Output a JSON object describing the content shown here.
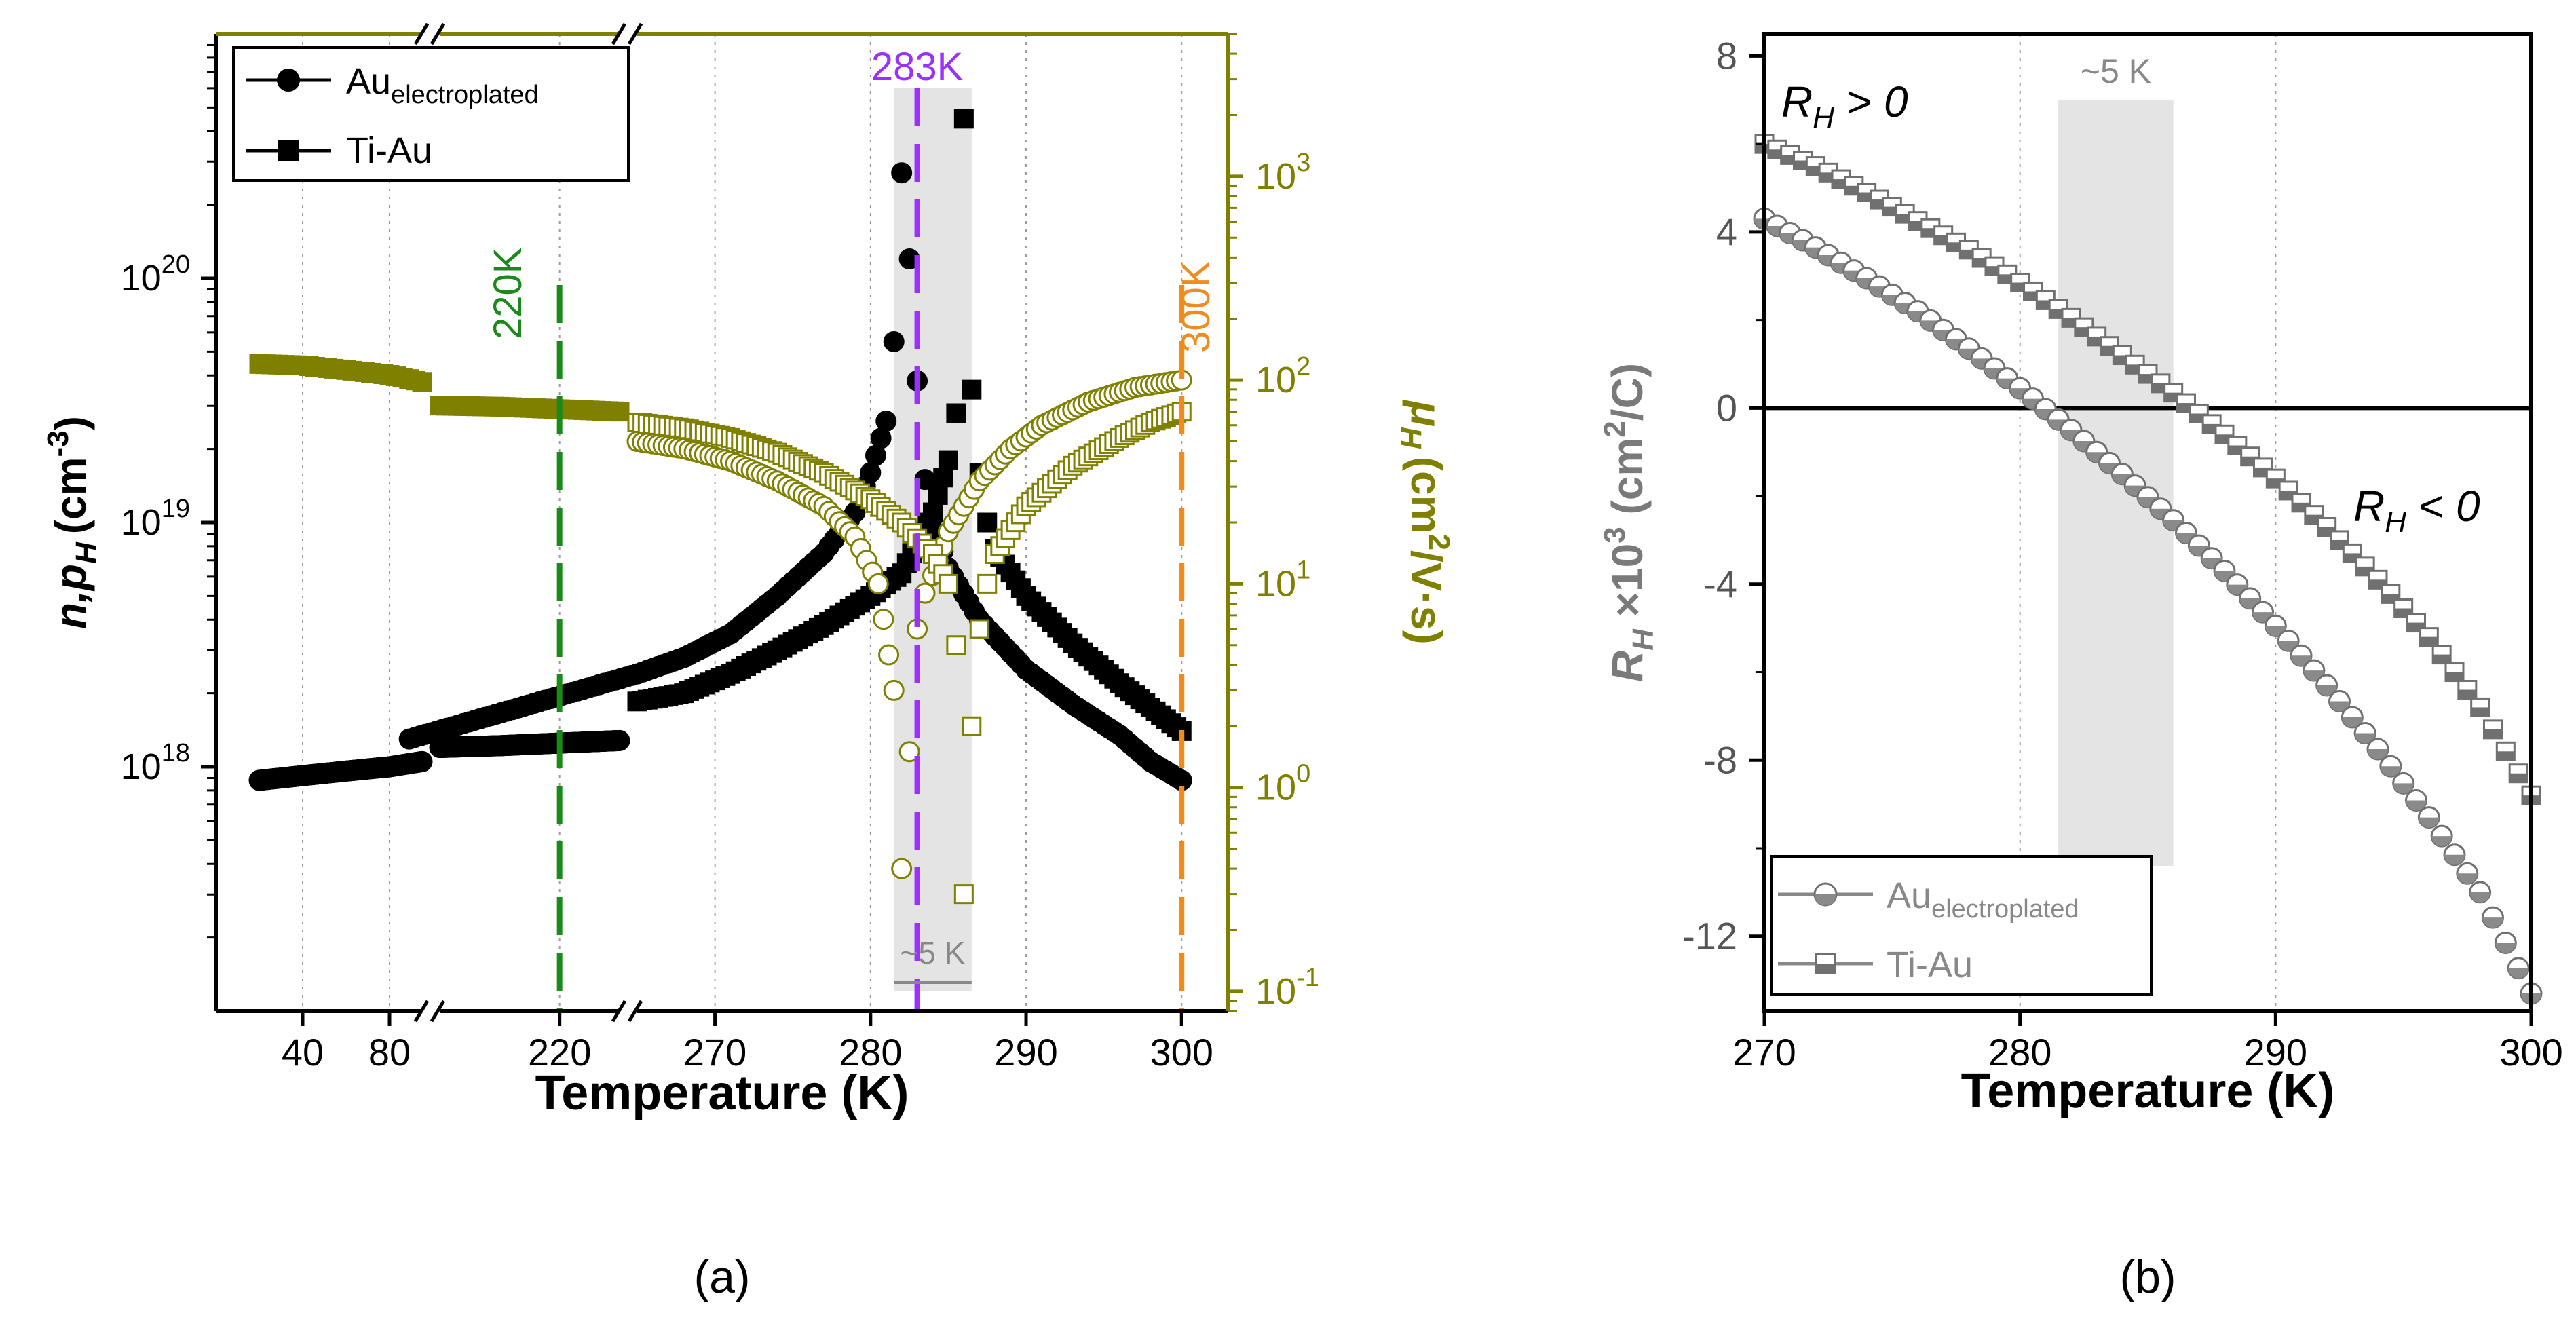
{
  "panel_labels": {
    "a": "(a)",
    "b": "(b)"
  },
  "chart_data": [
    {
      "panel": "(a)",
      "type": "scatter",
      "xlabel": "Temperature (K)",
      "ylabel_left": "n,p",
      "ylabel_left_sub": "H",
      "ylabel_left_unit": "(cm",
      "ylabel_left_exp": "-3",
      "ylabel_left_close": ")",
      "ylabel_right": "μ",
      "ylabel_right_sub": "H",
      "ylabel_right_unit": "(cm",
      "ylabel_right_exp": "2",
      "ylabel_right_rest": "/V·s)",
      "right_axis_color": "#808000",
      "x_ticks": [
        "40",
        "80",
        "220",
        "270",
        "280",
        "290",
        "300"
      ],
      "y_left_log_range": [
        1e+17,
        1e+21
      ],
      "y_left_ticks": [
        {
          "base": "10",
          "exp": "18",
          "value": 1e+18
        },
        {
          "base": "10",
          "exp": "19",
          "value": 1e+19
        },
        {
          "base": "10",
          "exp": "20",
          "value": 1e+20
        }
      ],
      "y_right_log_range": [
        0.08,
        5000
      ],
      "y_right_ticks": [
        {
          "base": "10",
          "exp": "-1",
          "value": 0.1
        },
        {
          "base": "10",
          "exp": "0",
          "value": 1
        },
        {
          "base": "10",
          "exp": "1",
          "value": 10
        },
        {
          "base": "10",
          "exp": "2",
          "value": 100
        },
        {
          "base": "10",
          "exp": "3",
          "value": 1000
        }
      ],
      "legend": [
        {
          "name": "Au",
          "sub": "electroplated",
          "marker": "circle"
        },
        {
          "name": "Ti-Au",
          "marker": "square"
        }
      ],
      "annotations": [
        {
          "text": "220K",
          "x": 220,
          "color": "#1a8a1a"
        },
        {
          "text": "283K",
          "x": 283,
          "color": "#9b30ff"
        },
        {
          "text": "300K",
          "x": 300,
          "color": "#f08c1e"
        },
        {
          "text": "~5 K",
          "x_range": [
            281.5,
            286.5
          ],
          "color": "#888888"
        }
      ],
      "shaded_region_x": [
        281.5,
        286.5
      ],
      "series": [
        {
          "name": "Au (n,p)",
          "axis": "left",
          "filled": true,
          "marker": "circle",
          "x": [
            20,
            40,
            60,
            80,
            95,
            160,
            190,
            220,
            250,
            265,
            268,
            271,
            274,
            277,
            279,
            280,
            281,
            281.5,
            282,
            282.5,
            283,
            283.5,
            284,
            285,
            287,
            290,
            293,
            296,
            298,
            300
          ],
          "y": [
            8.8e+17,
            9.2e+17,
            9.6e+17,
            1e+18,
            1.05e+18,
            1.2e+18,
            1.22e+18,
            1.25e+18,
            1.28e+18,
            2.4e+18,
            2.8e+18,
            3.5e+18,
            5e+18,
            7.5e+18,
            1.1e+19,
            1.6e+19,
            2.6e+19,
            5.5e+19,
            2.7e+20,
            1.2e+20,
            3.8e+19,
            1.5e+19,
            1.05e+19,
            6.5e+18,
            4e+18,
            2.5e+18,
            1.8e+18,
            1.35e+18,
            1.05e+18,
            8.8e+17
          ]
        },
        {
          "name": "Ti-Au (n,p)",
          "axis": "left",
          "filled": true,
          "marker": "square",
          "x": [
            265,
            268,
            271,
            274,
            277,
            280,
            282,
            284,
            285,
            285.5,
            286,
            286.5,
            287,
            287.5,
            288,
            290,
            293,
            296,
            298,
            300
          ],
          "y": [
            1.85e+18,
            2e+18,
            2.4e+18,
            3e+18,
            3.8e+18,
            5e+18,
            6.2e+18,
            1.1e+19,
            1.8e+19,
            2.8e+19,
            4.5e+20,
            3.5e+19,
            1.6e+19,
            1e+19,
            7.8e+18,
            5e+18,
            3.2e+18,
            2.2e+18,
            1.75e+18,
            1.4e+18
          ]
        },
        {
          "name": "Au (μH)",
          "axis": "right",
          "filled": false,
          "marker": "circle",
          "x": [
            265,
            268,
            271,
            274,
            277,
            279,
            280.5,
            281.5,
            282,
            282.5,
            283,
            283.5,
            284,
            285,
            287,
            289,
            291,
            294,
            297,
            300
          ],
          "y": [
            50,
            46,
            40,
            32,
            24,
            17,
            10,
            3,
            0.4,
            1.5,
            6,
            9,
            11,
            18,
            32,
            46,
            60,
            78,
            92,
            100
          ]
        },
        {
          "name": "Ti-Au (μH)",
          "axis": "right",
          "filled": false,
          "marker": "square",
          "x": [
            265,
            268,
            271,
            274,
            277,
            280,
            282,
            284,
            285,
            285.5,
            286,
            286.5,
            287,
            287.5,
            288,
            290,
            293,
            296,
            298,
            300
          ],
          "y": [
            62,
            58,
            52,
            44,
            35,
            26,
            20,
            14,
            10,
            5,
            0.3,
            2,
            6,
            10,
            14,
            24,
            38,
            52,
            62,
            70
          ]
        },
        {
          "name": "low-T μH",
          "axis": "right",
          "filled": true,
          "marker": "square",
          "x": [
            20,
            40,
            60,
            80,
            95,
            160,
            190,
            220,
            250
          ],
          "y": [
            120,
            118,
            112,
            106,
            98,
            75,
            74,
            72,
            70
          ]
        }
      ]
    },
    {
      "panel": "(b)",
      "type": "scatter",
      "xlabel": "Temperature (K)",
      "ylabel": "R",
      "ylabel_sub": "H",
      "ylabel_mid": " ×10",
      "ylabel_exp": "3",
      "ylabel_unit": " (cm",
      "ylabel_unit_exp": "2",
      "ylabel_unit_rest": "/C)",
      "xlim": [
        270,
        300
      ],
      "ylim": [
        -13.7,
        8.5
      ],
      "x_ticks": [
        270,
        280,
        290,
        300
      ],
      "y_ticks": [
        8,
        4,
        0,
        -4,
        -8,
        -12
      ],
      "shaded_region_x": [
        281.5,
        286
      ],
      "annotations": [
        {
          "text": "~5 K"
        },
        {
          "text": "R",
          "sub": "H",
          "rest": " > 0"
        },
        {
          "text": "R",
          "sub": "H",
          "rest": " < 0"
        }
      ],
      "legend": [
        {
          "name": "Au",
          "sub": "electroplated",
          "marker": "half-filled-circle"
        },
        {
          "name": "Ti-Au",
          "marker": "half-filled-square"
        }
      ],
      "series": [
        {
          "name": "Au",
          "marker": "circle",
          "x": [
            270,
            272,
            274,
            276,
            278,
            280,
            282,
            284,
            286,
            288,
            290,
            292,
            294,
            296,
            298,
            300
          ],
          "y": [
            4.3,
            3.65,
            2.95,
            2.2,
            1.35,
            0.45,
            -0.5,
            -1.5,
            -2.55,
            -3.7,
            -4.95,
            -6.3,
            -7.75,
            -9.3,
            -11.0,
            -13.3
          ]
        },
        {
          "name": "Ti-Au",
          "marker": "square",
          "x": [
            270,
            272,
            274,
            276,
            278,
            280,
            282,
            284,
            286,
            288,
            290,
            292,
            294,
            296,
            298,
            300
          ],
          "y": [
            6.0,
            5.5,
            4.9,
            4.25,
            3.6,
            2.85,
            2.05,
            1.2,
            0.35,
            -0.6,
            -1.6,
            -2.7,
            -3.9,
            -5.2,
            -6.8,
            -8.8
          ]
        }
      ]
    }
  ]
}
